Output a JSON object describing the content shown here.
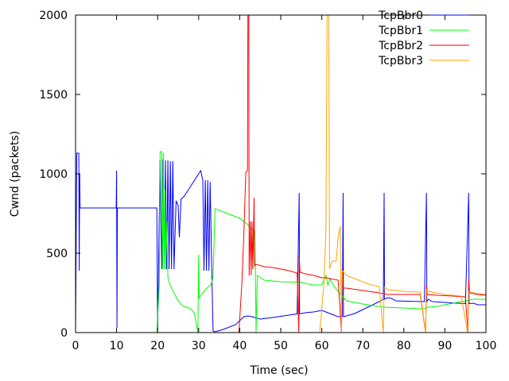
{
  "chart_data": {
    "type": "line",
    "xlabel": "Time (sec)",
    "ylabel": "Cwnd (packets)",
    "xlim": [
      0,
      100
    ],
    "ylim": [
      0,
      2000
    ],
    "xticks": [
      0,
      10,
      20,
      30,
      40,
      50,
      60,
      70,
      80,
      90,
      100
    ],
    "yticks": [
      0,
      500,
      1000,
      1500,
      2000
    ],
    "grid": false,
    "legend_position": "top-right",
    "series": [
      {
        "name": "TcpBbr0",
        "color": "#0000ff",
        "points": [
          [
            0,
            10
          ],
          [
            0.3,
            1130
          ],
          [
            0.8,
            1130
          ],
          [
            0.9,
            390
          ],
          [
            1.0,
            1000
          ],
          [
            1.1,
            785
          ],
          [
            9.9,
            785
          ],
          [
            10.0,
            1020
          ],
          [
            10.1,
            30
          ],
          [
            10.2,
            785
          ],
          [
            19.8,
            785
          ],
          [
            20.0,
            20
          ],
          [
            20.6,
            1090
          ],
          [
            21.0,
            400
          ],
          [
            21.3,
            1090
          ],
          [
            21.6,
            400
          ],
          [
            21.9,
            1085
          ],
          [
            22.2,
            400
          ],
          [
            22.5,
            1085
          ],
          [
            22.8,
            400
          ],
          [
            23.1,
            1080
          ],
          [
            23.4,
            400
          ],
          [
            23.7,
            1080
          ],
          [
            24.0,
            400
          ],
          [
            24.5,
            830
          ],
          [
            25.0,
            800
          ],
          [
            25.3,
            600
          ],
          [
            25.7,
            840
          ],
          [
            26.5,
            860
          ],
          [
            28.0,
            920
          ],
          [
            29.0,
            960
          ],
          [
            30.0,
            1000
          ],
          [
            30.5,
            1020
          ],
          [
            31.0,
            960
          ],
          [
            31.3,
            390
          ],
          [
            31.6,
            960
          ],
          [
            31.9,
            390
          ],
          [
            32.2,
            960
          ],
          [
            32.5,
            390
          ],
          [
            32.8,
            950
          ],
          [
            33.2,
            390
          ],
          [
            33.5,
            10
          ],
          [
            34.0,
            5
          ],
          [
            36.0,
            20
          ],
          [
            39.0,
            50
          ],
          [
            41.0,
            100
          ],
          [
            42.0,
            105
          ],
          [
            43.0,
            100
          ],
          [
            45.0,
            85
          ],
          [
            48.0,
            95
          ],
          [
            52.0,
            110
          ],
          [
            54.0,
            118
          ],
          [
            54.5,
            880
          ],
          [
            54.6,
            118
          ],
          [
            56.0,
            125
          ],
          [
            58.0,
            130
          ],
          [
            60.0,
            140
          ],
          [
            62.0,
            120
          ],
          [
            64.0,
            100
          ],
          [
            65.0,
            100
          ],
          [
            65.2,
            880
          ],
          [
            65.3,
            100
          ],
          [
            66.0,
            105
          ],
          [
            68.0,
            120
          ],
          [
            70.0,
            145
          ],
          [
            72.0,
            170
          ],
          [
            74.0,
            195
          ],
          [
            75.0,
            210
          ],
          [
            75.2,
            880
          ],
          [
            75.3,
            210
          ],
          [
            76.0,
            220
          ],
          [
            77.0,
            215
          ],
          [
            78.0,
            200
          ],
          [
            80.0,
            198
          ],
          [
            82.0,
            197
          ],
          [
            85.0,
            195
          ],
          [
            85.5,
            880
          ],
          [
            85.6,
            195
          ],
          [
            86.0,
            210
          ],
          [
            87.0,
            195
          ],
          [
            90.0,
            190
          ],
          [
            93.0,
            185
          ],
          [
            95.0,
            182
          ],
          [
            95.8,
            880
          ],
          [
            95.9,
            182
          ],
          [
            97.0,
            185
          ],
          [
            98.0,
            175
          ],
          [
            100.0,
            175
          ]
        ]
      },
      {
        "name": "TcpBbr1",
        "color": "#00ff00",
        "points": [
          [
            19.8,
            0
          ],
          [
            20.4,
            300
          ],
          [
            20.6,
            1140
          ],
          [
            21.0,
            1140
          ],
          [
            21.2,
            400
          ],
          [
            21.4,
            1130
          ],
          [
            21.6,
            400
          ],
          [
            21.8,
            900
          ],
          [
            22.0,
            400
          ],
          [
            22.2,
            700
          ],
          [
            22.5,
            350
          ],
          [
            23.0,
            300
          ],
          [
            24.0,
            250
          ],
          [
            25.0,
            200
          ],
          [
            26.0,
            170
          ],
          [
            27.0,
            160
          ],
          [
            28.0,
            150
          ],
          [
            29.0,
            120
          ],
          [
            29.5,
            40
          ],
          [
            29.8,
            0
          ],
          [
            30.0,
            490
          ],
          [
            30.1,
            220
          ],
          [
            31.0,
            250
          ],
          [
            32.0,
            280
          ],
          [
            33.0,
            300
          ],
          [
            33.5,
            350
          ],
          [
            34.0,
            780
          ],
          [
            36.0,
            760
          ],
          [
            38.0,
            740
          ],
          [
            40.0,
            720
          ],
          [
            41.0,
            700
          ],
          [
            42.0,
            680
          ],
          [
            43.0,
            650
          ],
          [
            43.7,
            640
          ],
          [
            44.0,
            0
          ],
          [
            44.3,
            360
          ],
          [
            46.0,
            330
          ],
          [
            50.0,
            320
          ],
          [
            54.0,
            318
          ],
          [
            54.6,
            320
          ],
          [
            56.0,
            310
          ],
          [
            58.0,
            300
          ],
          [
            60.0,
            300
          ],
          [
            61.0,
            360
          ],
          [
            61.5,
            300
          ],
          [
            62.0,
            340
          ],
          [
            63.0,
            290
          ],
          [
            64.0,
            260
          ],
          [
            65.0,
            230
          ],
          [
            66.0,
            200
          ],
          [
            70.0,
            180
          ],
          [
            75.0,
            160
          ],
          [
            80.0,
            155
          ],
          [
            84.0,
            150
          ],
          [
            85.0,
            150
          ],
          [
            86.0,
            160
          ],
          [
            88.0,
            165
          ],
          [
            90.0,
            175
          ],
          [
            93.0,
            190
          ],
          [
            95.0,
            200
          ],
          [
            96.0,
            205
          ],
          [
            97.0,
            210
          ],
          [
            100.0,
            210
          ]
        ]
      },
      {
        "name": "TcpBbr2",
        "color": "#ff0000",
        "points": [
          [
            39.8,
            0
          ],
          [
            40.5,
            300
          ],
          [
            41.0,
            620
          ],
          [
            41.5,
            1010
          ],
          [
            41.9,
            1020
          ],
          [
            42.0,
            2000
          ],
          [
            42.2,
            2000
          ],
          [
            42.3,
            360
          ],
          [
            42.6,
            700
          ],
          [
            42.8,
            360
          ],
          [
            43.0,
            700
          ],
          [
            43.2,
            400
          ],
          [
            43.5,
            850
          ],
          [
            43.6,
            420
          ],
          [
            44.0,
            430
          ],
          [
            46.0,
            415
          ],
          [
            48.0,
            410
          ],
          [
            50.0,
            400
          ],
          [
            52.0,
            390
          ],
          [
            54.0,
            375
          ],
          [
            54.4,
            0
          ],
          [
            54.5,
            490
          ],
          [
            54.7,
            380
          ],
          [
            56.0,
            370
          ],
          [
            58.0,
            360
          ],
          [
            60.0,
            345
          ],
          [
            61.0,
            345
          ],
          [
            62.0,
            340
          ],
          [
            64.0,
            330
          ],
          [
            64.8,
            0
          ],
          [
            65.0,
            400
          ],
          [
            65.3,
            280
          ],
          [
            66.0,
            280
          ],
          [
            70.0,
            265
          ],
          [
            74.0,
            250
          ],
          [
            75.0,
            245
          ],
          [
            76.0,
            240
          ],
          [
            80.0,
            240
          ],
          [
            84.0,
            240
          ],
          [
            85.3,
            0
          ],
          [
            85.5,
            300
          ],
          [
            85.7,
            240
          ],
          [
            88.0,
            235
          ],
          [
            92.0,
            230
          ],
          [
            95.0,
            225
          ],
          [
            95.6,
            0
          ],
          [
            95.8,
            340
          ],
          [
            96.0,
            250
          ],
          [
            98.0,
            240
          ],
          [
            100.0,
            235
          ]
        ]
      },
      {
        "name": "TcpBbr3",
        "color": "#ffa500",
        "points": [
          [
            59.5,
            0
          ],
          [
            60.5,
            300
          ],
          [
            61.0,
            650
          ],
          [
            61.3,
            2000
          ],
          [
            61.7,
            2000
          ],
          [
            61.9,
            400
          ],
          [
            62.5,
            450
          ],
          [
            63.5,
            450
          ],
          [
            64.0,
            600
          ],
          [
            64.5,
            670
          ],
          [
            64.8,
            0
          ],
          [
            65.0,
            390
          ],
          [
            66.0,
            360
          ],
          [
            68.0,
            340
          ],
          [
            70.0,
            320
          ],
          [
            72.0,
            300
          ],
          [
            74.0,
            290
          ],
          [
            75.0,
            0
          ],
          [
            75.2,
            290
          ],
          [
            76.0,
            270
          ],
          [
            78.0,
            265
          ],
          [
            80.0,
            260
          ],
          [
            84.0,
            255
          ],
          [
            85.3,
            0
          ],
          [
            85.5,
            270
          ],
          [
            86.0,
            260
          ],
          [
            88.0,
            250
          ],
          [
            90.0,
            240
          ],
          [
            94.0,
            230
          ],
          [
            95.5,
            0
          ],
          [
            95.8,
            260
          ],
          [
            97.0,
            250
          ],
          [
            100.0,
            240
          ]
        ]
      }
    ]
  }
}
